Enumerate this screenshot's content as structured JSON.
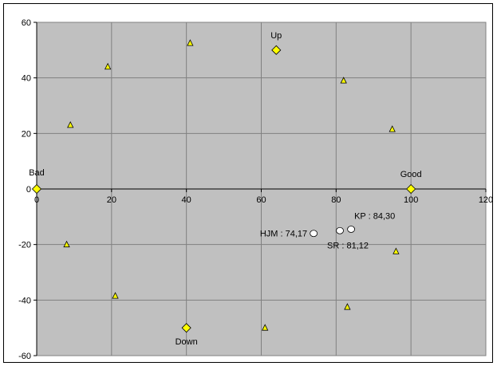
{
  "chart_data": {
    "type": "scatter",
    "title": "",
    "xlabel": "",
    "ylabel": "",
    "xlim": [
      0,
      120
    ],
    "ylim": [
      -60,
      60
    ],
    "x_ticks": [
      0,
      20,
      40,
      60,
      80,
      100,
      120
    ],
    "y_ticks": [
      -60,
      -40,
      -20,
      0,
      20,
      40,
      60
    ],
    "grid": true,
    "plot_background": "#C0C0C0",
    "series": [
      {
        "marker": "triangle",
        "color": "#FFFF00",
        "points": [
          {
            "x": 9,
            "y": 23
          },
          {
            "x": 19,
            "y": 44
          },
          {
            "x": 41,
            "y": 52.5
          },
          {
            "x": 82,
            "y": 39
          },
          {
            "x": 95,
            "y": 21.5
          },
          {
            "x": 8,
            "y": -20
          },
          {
            "x": 96,
            "y": -22.5
          },
          {
            "x": 21,
            "y": -38.5
          },
          {
            "x": 83,
            "y": -42.5
          },
          {
            "x": 61,
            "y": -50
          }
        ]
      },
      {
        "marker": "diamond",
        "color": "#FFFF00",
        "points": [
          {
            "x": 0,
            "y": 0,
            "label": "Bad"
          },
          {
            "x": 64,
            "y": 50,
            "label": "Up"
          },
          {
            "x": 100,
            "y": 0,
            "label": "Good"
          },
          {
            "x": 40,
            "y": -50,
            "label": "Down"
          }
        ]
      },
      {
        "marker": "circle",
        "color": "#FFFFFF",
        "points": [
          {
            "x": 74,
            "y": -16,
            "label": "HJM : 74,17"
          },
          {
            "x": 81,
            "y": -15,
            "label": "SR : 81,12"
          },
          {
            "x": 84,
            "y": -14.5,
            "label": "KP : 84,30"
          }
        ]
      }
    ]
  }
}
